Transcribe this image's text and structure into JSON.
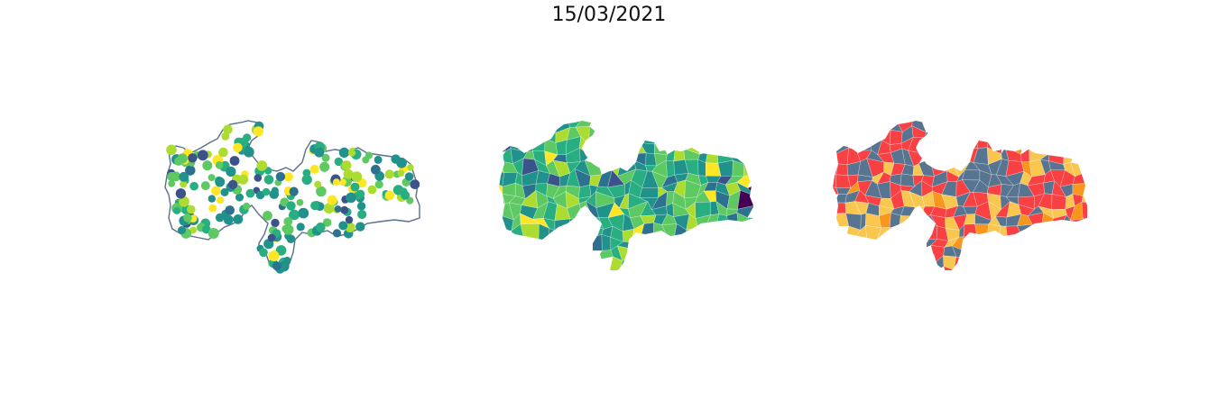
{
  "title": "15/03/2021",
  "palettes": {
    "sequential": [
      "#440154",
      "#3b528b",
      "#2c728e",
      "#21918c",
      "#28ae80",
      "#5ec962",
      "#addc30",
      "#fde725"
    ],
    "categorical": [
      "#f94144",
      "#577590",
      "#f9c74f",
      "#f8961e"
    ],
    "outline": "#5a6f8a"
  },
  "panels": [
    {
      "kind": "proportional-dots",
      "label": ""
    },
    {
      "kind": "choropleth-sequential",
      "label": ""
    },
    {
      "kind": "choropleth-categorical",
      "label": ""
    }
  ]
}
